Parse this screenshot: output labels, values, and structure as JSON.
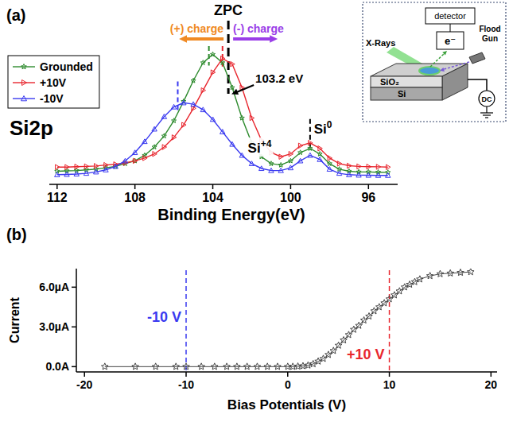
{
  "chart_data": [
    {
      "type": "line",
      "panel": "(a)",
      "title": "Si2p",
      "x_label": "Binding Energy(eV)",
      "x": [
        112,
        111.5,
        111,
        110.5,
        110,
        109.5,
        109,
        108.5,
        108,
        107.5,
        107,
        106.5,
        106,
        105.5,
        105,
        104.5,
        104,
        103.5,
        103,
        102.5,
        102,
        101.5,
        101,
        100.5,
        100,
        99.5,
        99,
        98.5,
        98,
        97.5,
        97,
        96.5,
        96,
        95.5,
        95
      ],
      "series": [
        {
          "name": "Grounded",
          "color": "#2e8b2e",
          "marker": "star",
          "line_style": "solid",
          "values": [
            9.5,
            9.8,
            10,
            10.5,
            11,
            12,
            13,
            15,
            17,
            21,
            27,
            35,
            46,
            60,
            75,
            88,
            94,
            88,
            70,
            48,
            30,
            20,
            15,
            14,
            17,
            23,
            26,
            22,
            15,
            11,
            9.5,
            9,
            9,
            8.8,
            8.7
          ]
        },
        {
          "name": "+10V",
          "color": "#e8262e",
          "marker": "triangle-right",
          "line_style": "solid",
          "values": [
            12.5,
            12.5,
            12.8,
            13,
            13.3,
            14,
            14.5,
            15.5,
            17,
            19,
            22,
            27,
            34,
            43,
            55,
            68,
            81,
            91,
            87,
            70,
            48,
            32,
            23,
            20,
            22,
            28,
            30,
            26,
            19,
            15,
            13.5,
            13,
            12.8,
            12.7,
            12.5
          ]
        },
        {
          "name": "-10V",
          "color": "#3a3af0",
          "marker": "triangle-up",
          "line_style": "solid",
          "values": [
            7,
            7.2,
            7.5,
            8,
            9,
            10.5,
            13,
            17,
            23,
            31,
            40,
            49,
            56,
            59,
            58,
            54,
            47,
            38,
            29,
            21,
            15,
            11.5,
            10,
            10,
            12,
            17,
            21,
            18,
            11,
            8,
            7,
            6.7,
            6.6,
            6.5,
            6.5
          ]
        }
      ],
      "xlim": [
        112.4,
        94.5
      ],
      "ylim": [
        0,
        100
      ],
      "xticks": [
        112,
        108,
        104,
        100,
        96
      ],
      "tick_labels": "x",
      "legend": "upper left",
      "reference_lines": [
        {
          "x": 105.8,
          "color": "#3a3af0"
        },
        {
          "x": 104.2,
          "color": "#2e8b2e"
        },
        {
          "x": 103.5,
          "color": "#e8262e"
        },
        {
          "x": 103.2,
          "label": "ZPC",
          "color": "#000000"
        },
        {
          "x": 99.0,
          "color": "#000000"
        }
      ],
      "annotations": [
        {
          "text": "(+) charge",
          "direction": "left",
          "color": "#f08a24"
        },
        {
          "text": "(-) charge",
          "direction": "right",
          "color": "#9a3ee8"
        },
        {
          "text": "103.2 eV",
          "x": 103.2
        },
        {
          "text": "Si",
          "sup": "+4",
          "x": 102.2
        },
        {
          "text": "Si",
          "sup": "0",
          "x": 98.8
        }
      ],
      "inset": {
        "detector": "detector",
        "electron": "e⁻",
        "xrays": "X-Rays",
        "flood_gun": "Flood Gun",
        "oxide": "SiO₂",
        "substrate": "Si",
        "source": "DC"
      }
    },
    {
      "type": "line",
      "panel": "(b)",
      "x_label": "Bias Potentials (V)",
      "y_label": "Current",
      "x": [
        -18,
        -15,
        -13,
        -11,
        -10,
        -8.5,
        -7.2,
        -6,
        -5,
        -4,
        -3,
        -2,
        -1,
        0,
        0.5,
        1,
        1.5,
        2,
        2.5,
        3,
        3.5,
        4,
        4.5,
        5,
        5.5,
        6,
        6.5,
        7,
        7.5,
        8,
        8.5,
        9,
        9.5,
        10,
        10.5,
        11,
        11.5,
        12,
        12.5,
        13,
        14,
        15,
        16,
        17,
        18
      ],
      "values": [
        0,
        0,
        0,
        0,
        0,
        0,
        0,
        0,
        0,
        0,
        0,
        0,
        0,
        0,
        0,
        0.02,
        0.05,
        0.1,
        0.2,
        0.4,
        0.6,
        0.9,
        1.2,
        1.6,
        2.0,
        2.4,
        2.8,
        3.1,
        3.5,
        3.8,
        4.2,
        4.5,
        4.8,
        5.1,
        5.4,
        5.7,
        6.0,
        6.2,
        6.4,
        6.6,
        6.85,
        7.0,
        7.05,
        7.1,
        7.15
      ],
      "color": "#444444",
      "marker": "star",
      "line_style": "solid",
      "xlim": [
        -20.8,
        20.6
      ],
      "ylim": [
        -0.4,
        7.4
      ],
      "xticks": [
        -20,
        -10,
        0,
        10,
        20
      ],
      "yticks": [
        {
          "value": 0,
          "label": "0.0A"
        },
        {
          "value": 3,
          "label": "3.0µA"
        },
        {
          "value": 6,
          "label": "6.0µA"
        }
      ],
      "reference_lines": [
        {
          "x": -10,
          "label": "-10 V",
          "color": "#3a3af0"
        },
        {
          "x": 10,
          "label": "+10 V",
          "color": "#e8262e"
        }
      ]
    }
  ]
}
